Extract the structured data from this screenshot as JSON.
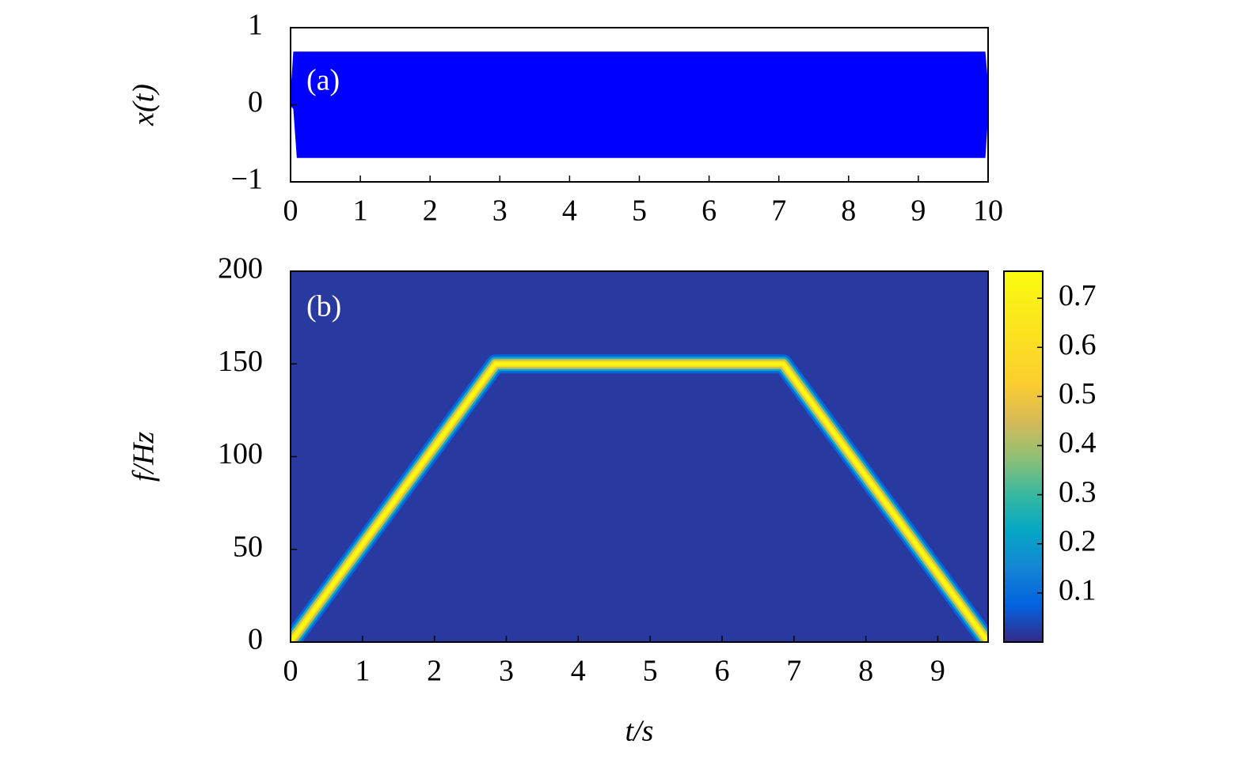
{
  "chart_data": [
    {
      "type": "band",
      "annotation": "(a)",
      "ylabel": "x(t)",
      "color": "#0000ff",
      "x": [
        0,
        0.05,
        0.1,
        9.85,
        9.95,
        10
      ],
      "upper": [
        0,
        0.68,
        0.68,
        0.68,
        0.68,
        0.15
      ],
      "lower": [
        0,
        -0.05,
        -0.68,
        -0.68,
        -0.68,
        0
      ],
      "xlim": [
        0,
        10
      ],
      "ylim": [
        -1,
        1
      ],
      "xticks": [
        0,
        1,
        2,
        3,
        4,
        5,
        6,
        7,
        8,
        9,
        10
      ],
      "yticks": [
        {
          "value": -1,
          "label": "−1"
        },
        0,
        1
      ]
    },
    {
      "type": "ridge",
      "annotation": "(b)",
      "xlabel": "t/s",
      "ylabel": "f/Hz",
      "x": [
        0,
        2.85,
        6.85,
        9.7
      ],
      "values": [
        0,
        150,
        150,
        0
      ],
      "z_background": 0.02,
      "z_ridge": 0.75,
      "xlim": [
        0,
        9.7
      ],
      "ylim": [
        0,
        200
      ],
      "xticks": [
        0,
        1,
        2,
        3,
        4,
        5,
        6,
        7,
        8,
        9
      ],
      "yticks": [
        0,
        50,
        100,
        150,
        200
      ],
      "clim": [
        0,
        0.755
      ],
      "cticks": [
        0.1,
        0.2,
        0.3,
        0.4,
        0.5,
        0.6,
        0.7
      ]
    }
  ]
}
